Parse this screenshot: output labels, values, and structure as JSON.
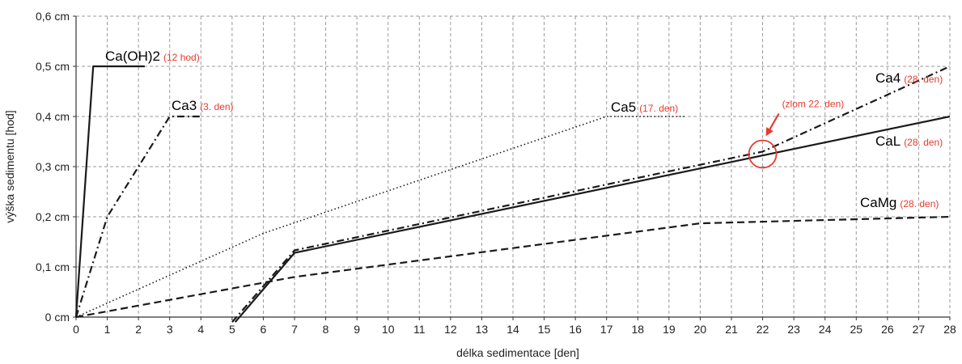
{
  "chart_data": {
    "type": "line",
    "xlabel": "délka sedimentace [den]",
    "ylabel": "výška sedimentu [hod]",
    "xlim": [
      0,
      28
    ],
    "ylim": [
      0,
      0.6
    ],
    "x_ticks": [
      "0",
      "1",
      "2",
      "3",
      "4",
      "5",
      "6",
      "7",
      "8",
      "9",
      "10",
      "11",
      "12",
      "13",
      "14",
      "15",
      "16",
      "17",
      "18",
      "19",
      "20",
      "21",
      "22",
      "23",
      "24",
      "25",
      "26",
      "27",
      "28"
    ],
    "y_ticks": [
      {
        "value": 0,
        "label": "0 cm"
      },
      {
        "value": 0.1,
        "label": "0,1 cm"
      },
      {
        "value": 0.2,
        "label": "0,2 cm"
      },
      {
        "value": 0.3,
        "label": "0,3 cm"
      },
      {
        "value": 0.4,
        "label": "0,4 cm"
      },
      {
        "value": 0.5,
        "label": "0,5 cm"
      },
      {
        "value": 0.6,
        "label": "0,6 cm"
      }
    ],
    "grid": true,
    "series": [
      {
        "name": "Ca(OH)2",
        "note": "(12 hod)",
        "style": "solid",
        "points": [
          [
            0,
            0
          ],
          [
            0.55,
            0.5
          ],
          [
            2.2,
            0.5
          ]
        ]
      },
      {
        "name": "Ca3",
        "note": "(3. den)",
        "style": "dashdot",
        "points": [
          [
            0,
            0
          ],
          [
            1,
            0.2
          ],
          [
            3,
            0.4
          ],
          [
            4,
            0.4
          ]
        ]
      },
      {
        "name": "Ca5",
        "note": "(17. den)",
        "style": "dotted",
        "points": [
          [
            0,
            0
          ],
          [
            6,
            0.167
          ],
          [
            17,
            0.4
          ],
          [
            19.5,
            0.4
          ]
        ]
      },
      {
        "name": "Ca4",
        "note": "(28. den)",
        "style": "dashdot",
        "points": [
          [
            5,
            -0.01
          ],
          [
            7,
            0.133
          ],
          [
            22,
            0.33
          ],
          [
            28,
            0.5
          ]
        ]
      },
      {
        "name": "CaL",
        "note": "(28. den)",
        "style": "solid",
        "points": [
          [
            5.1,
            -0.01
          ],
          [
            7,
            0.128
          ],
          [
            28,
            0.4
          ]
        ]
      },
      {
        "name": "CaMg",
        "note": "(28. den)",
        "style": "dashed",
        "points": [
          [
            0,
            0
          ],
          [
            7,
            0.08
          ],
          [
            20,
            0.187
          ],
          [
            28,
            0.2
          ]
        ]
      }
    ],
    "annotations": [
      {
        "text": "(zlom 22. den)",
        "x": 22,
        "y": 0.325,
        "color": "#e63a2e"
      }
    ],
    "label_colors": {
      "series": "#000000",
      "note": "#e63a2e"
    }
  }
}
